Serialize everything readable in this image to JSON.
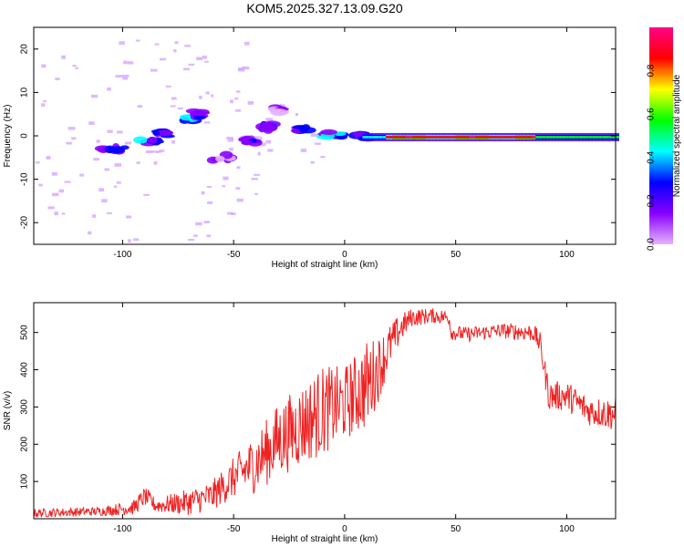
{
  "title": "KOM5.2025.327.13.09.G20",
  "chart_data": [
    {
      "type": "heatmap",
      "name": "spectrogram",
      "xlabel": "Height of straight line (km)",
      "ylabel": "Frequency (Hz)",
      "xlim": [
        -140,
        122
      ],
      "ylim": [
        -25,
        25
      ],
      "xticks": [
        -100,
        -50,
        0,
        50,
        100
      ],
      "yticks": [
        -20,
        -10,
        0,
        10,
        20
      ],
      "xtick_labels": [
        "-100",
        "-50",
        "0",
        "50",
        "100"
      ],
      "ytick_labels": [
        "-20",
        "-10",
        "0",
        "10",
        "20"
      ],
      "colorbar": {
        "label": "Normalized spectral amplitude",
        "range": [
          0.0,
          1.0
        ],
        "ticks": [
          "0.0",
          "0.2",
          "0.4",
          "0.6",
          "0.8"
        ],
        "colors": [
          "#e6b3ff",
          "#8800ff",
          "#0000ff",
          "#00ffff",
          "#00ff00",
          "#ffff00",
          "#ff0000",
          "#ff0088"
        ]
      },
      "blobs": [
        {
          "x": -105,
          "y": -3,
          "v": 0.35,
          "w": 12,
          "h": 1.2
        },
        {
          "x": -88,
          "y": -1.5,
          "v": 0.4,
          "w": 8,
          "h": 1.2
        },
        {
          "x": -70,
          "y": 4,
          "v": 0.5,
          "w": 5,
          "h": 1.2
        },
        {
          "x": -66,
          "y": 5,
          "v": 0.3,
          "w": 4,
          "h": 1.5
        },
        {
          "x": -82,
          "y": 0.5,
          "v": 0.35,
          "w": 6,
          "h": 1.2
        },
        {
          "x": -55,
          "y": -5,
          "v": 0.25,
          "w": 10,
          "h": 1.5
        },
        {
          "x": -42,
          "y": -1,
          "v": 0.3,
          "w": 6,
          "h": 1.5
        },
        {
          "x": -35,
          "y": 2,
          "v": 0.3,
          "w": 5,
          "h": 1.5
        },
        {
          "x": -30,
          "y": 6,
          "v": 0.2,
          "w": 4,
          "h": 1.2
        },
        {
          "x": -20,
          "y": 1.5,
          "v": 0.35,
          "w": 8,
          "h": 1.2
        },
        {
          "x": -5,
          "y": 0.3,
          "v": 0.45,
          "w": 10,
          "h": 1.2
        },
        {
          "x": 8,
          "y": 0,
          "v": 0.4,
          "w": 6,
          "h": 1.0
        }
      ]
    },
    {
      "type": "line",
      "name": "snr",
      "xlabel": "Height of straight line (km)",
      "ylabel": "SNR (v/v)",
      "xlim": [
        -140,
        122
      ],
      "ylim": [
        0,
        580
      ],
      "xticks": [
        -100,
        -50,
        0,
        50,
        100
      ],
      "yticks": [
        100,
        200,
        300,
        400,
        500
      ],
      "xtick_labels": [
        "-100",
        "-50",
        "0",
        "50",
        "100"
      ],
      "ytick_labels": [
        "100",
        "200",
        "300",
        "400",
        "500"
      ],
      "color": "#ee2222",
      "envelope": [
        [
          -140,
          15,
          12
        ],
        [
          -110,
          20,
          12
        ],
        [
          -95,
          30,
          20
        ],
        [
          -90,
          60,
          25
        ],
        [
          -85,
          35,
          20
        ],
        [
          -70,
          45,
          35
        ],
        [
          -60,
          60,
          40
        ],
        [
          -50,
          110,
          55
        ],
        [
          -40,
          150,
          80
        ],
        [
          -30,
          210,
          100
        ],
        [
          -20,
          250,
          110
        ],
        [
          -10,
          290,
          120
        ],
        [
          0,
          310,
          100
        ],
        [
          10,
          360,
          120
        ],
        [
          15,
          400,
          90
        ],
        [
          20,
          460,
          60
        ],
        [
          25,
          510,
          40
        ],
        [
          30,
          540,
          25
        ],
        [
          40,
          545,
          20
        ],
        [
          47,
          540,
          20
        ],
        [
          48,
          500,
          20
        ],
        [
          55,
          495,
          20
        ],
        [
          70,
          505,
          20
        ],
        [
          85,
          500,
          25
        ],
        [
          88,
          470,
          30
        ],
        [
          92,
          330,
          40
        ],
        [
          100,
          330,
          40
        ],
        [
          110,
          290,
          40
        ],
        [
          122,
          280,
          45
        ]
      ]
    }
  ]
}
